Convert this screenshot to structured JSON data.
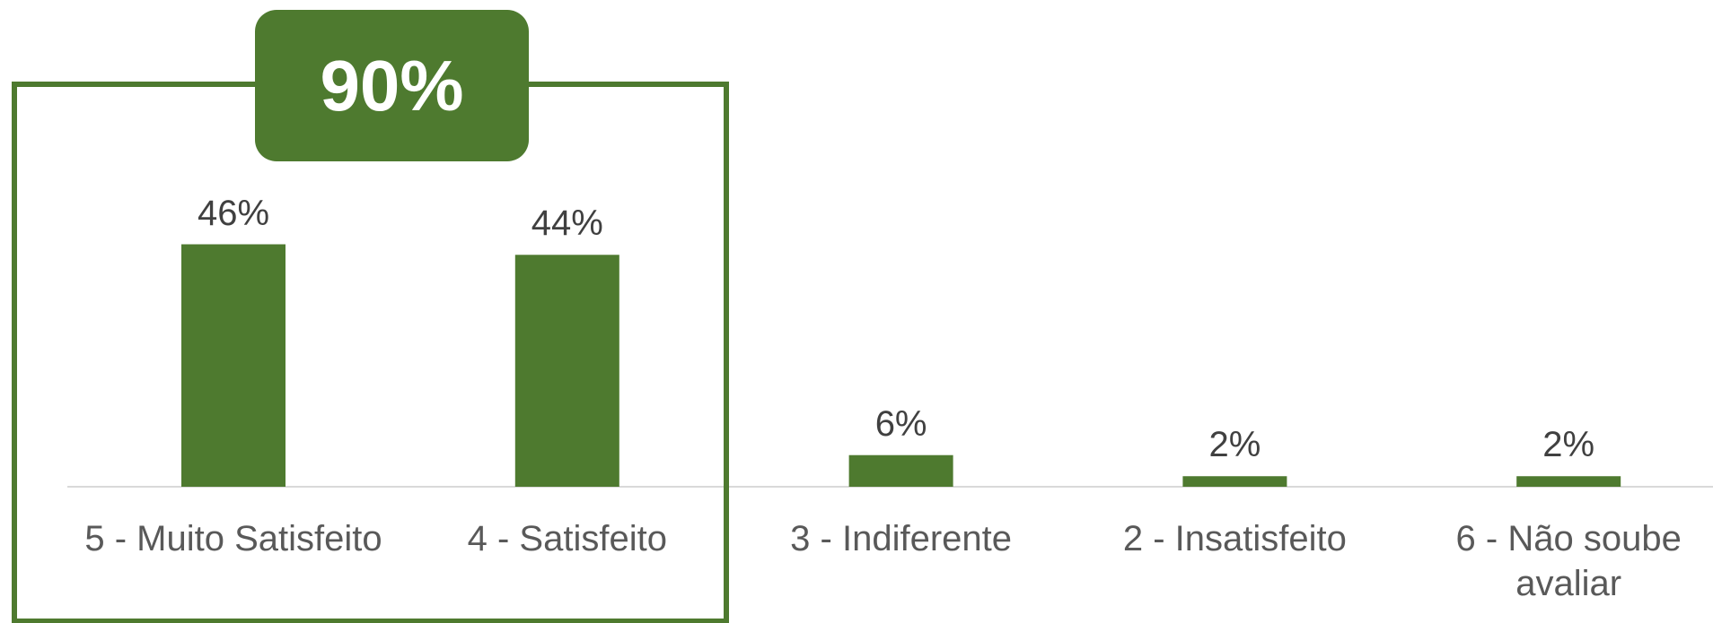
{
  "chart_data": {
    "type": "bar",
    "categories": [
      "5 - Muito Satisfeito",
      "4 - Satisfeito",
      "3 - Indiferente",
      "2 - Insatisfeito",
      "6 - Não soube avaliar"
    ],
    "values": [
      46,
      44,
      6,
      2,
      2
    ],
    "value_labels": [
      "46%",
      "44%",
      "6%",
      "2%",
      "2%"
    ],
    "color": "#4e7a2f",
    "annotation": "90%"
  }
}
